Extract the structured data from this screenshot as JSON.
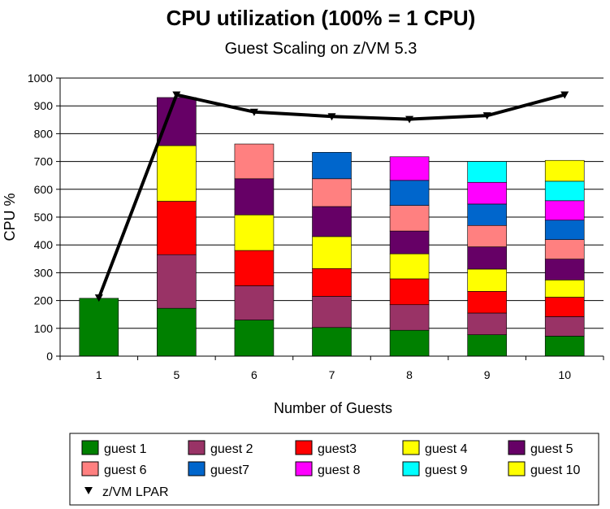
{
  "chart_data": {
    "type": "bar",
    "stacked": true,
    "title": "CPU utilization (100% = 1 CPU)",
    "subtitle": "Guest Scaling on z/VM 5.3",
    "xlabel": "Number of Guests",
    "ylabel": "CPU %",
    "ylim": [
      0,
      1000
    ],
    "yticks": [
      0,
      100,
      200,
      300,
      400,
      500,
      600,
      700,
      800,
      900,
      1000
    ],
    "categories": [
      "1",
      "5",
      "6",
      "7",
      "8",
      "9",
      "10"
    ],
    "grid": true,
    "legend_position": "bottom",
    "series": [
      {
        "name": "guest 1",
        "color": "#008000",
        "values": [
          208,
          172,
          130,
          103,
          93,
          77,
          72
        ]
      },
      {
        "name": "guest 2",
        "color": "#993366",
        "values": [
          null,
          193,
          123,
          112,
          92,
          78,
          70
        ]
      },
      {
        "name": "guest3",
        "color": "#FF0000",
        "values": [
          null,
          192,
          127,
          100,
          93,
          78,
          70
        ]
      },
      {
        "name": "guest 4",
        "color": "#FFFF00",
        "values": [
          null,
          200,
          128,
          115,
          90,
          80,
          62
        ]
      },
      {
        "name": "guest 5",
        "color": "#660066",
        "values": [
          null,
          173,
          130,
          108,
          82,
          80,
          75
        ]
      },
      {
        "name": "guest 6",
        "color": "#FF8080",
        "values": [
          null,
          null,
          125,
          100,
          92,
          77,
          70
        ]
      },
      {
        "name": "guest7",
        "color": "#0066CC",
        "values": [
          null,
          null,
          null,
          95,
          90,
          77,
          70
        ]
      },
      {
        "name": "guest 8",
        "color": "#FF00FF",
        "values": [
          null,
          null,
          null,
          null,
          85,
          78,
          70
        ]
      },
      {
        "name": "guest 9",
        "color": "#00FFFF",
        "values": [
          null,
          null,
          null,
          null,
          null,
          75,
          70
        ]
      },
      {
        "name": "guest 10",
        "color": "#FFFF00",
        "values": [
          null,
          null,
          null,
          null,
          null,
          null,
          75
        ]
      }
    ],
    "line_series": {
      "name": "z/VM LPAR",
      "color": "#000000",
      "marker": "triangle-down",
      "values": [
        210,
        940,
        878,
        862,
        852,
        865,
        940
      ]
    }
  }
}
